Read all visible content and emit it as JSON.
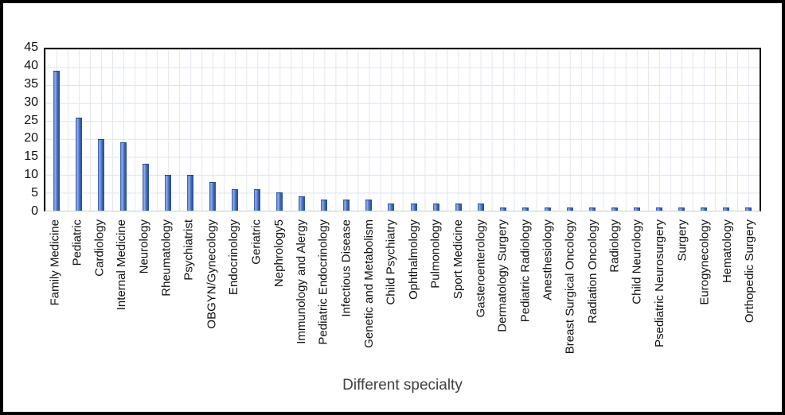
{
  "chart_data": {
    "type": "bar",
    "title": "",
    "xlabel": "Different specialty",
    "ylabel": "",
    "ylim": [
      0,
      45
    ],
    "yticks": [
      0,
      5,
      10,
      15,
      20,
      25,
      30,
      35,
      40,
      45
    ],
    "grid": true,
    "legend": false,
    "categories": [
      "Family Medicine",
      "Pediatric",
      "Cardiology",
      "Internal Medicine",
      "Neurology",
      "Rheumatology",
      "Psychiatrist",
      "OBGYN/Gynecology",
      "Endocrinology",
      "Geriatric",
      "Nephrology5",
      "Immunology and Alergy",
      "Pediatric Endocrinology",
      "Infectious Disease",
      "Genetic and Metabolism",
      "Child Psychiatry",
      "Ophthalmology",
      "Pulmonology",
      "Sport Medicine",
      "Gasteroenterology",
      "Dermatology Surgery",
      "Pediatric Radiology",
      "Anesthesiology",
      "Breast Surgical Oncology",
      "Radiation Oncology",
      "Radiology",
      "Child Neurology",
      "Psediatric Neurosurgery",
      "Surgery",
      "Eurogynecology",
      "Hematology",
      "Orthopedic Surgery"
    ],
    "values": [
      39,
      26,
      20,
      19,
      13,
      10,
      10,
      8,
      6,
      6,
      5,
      4,
      3,
      3,
      3,
      2,
      2,
      2,
      2,
      2,
      1,
      1,
      1,
      1,
      1,
      1,
      1,
      1,
      1,
      1,
      1,
      1
    ],
    "colors": {
      "bar_base": "#4472c4",
      "bar_edge_dark": "#254a97",
      "bar_highlight": "#9db4e4",
      "gridline": "#e0e5ee",
      "axis_line": "#000000",
      "tick_text": "#111111",
      "axis_title_text": "#404040",
      "frame_border": "#000000"
    }
  }
}
